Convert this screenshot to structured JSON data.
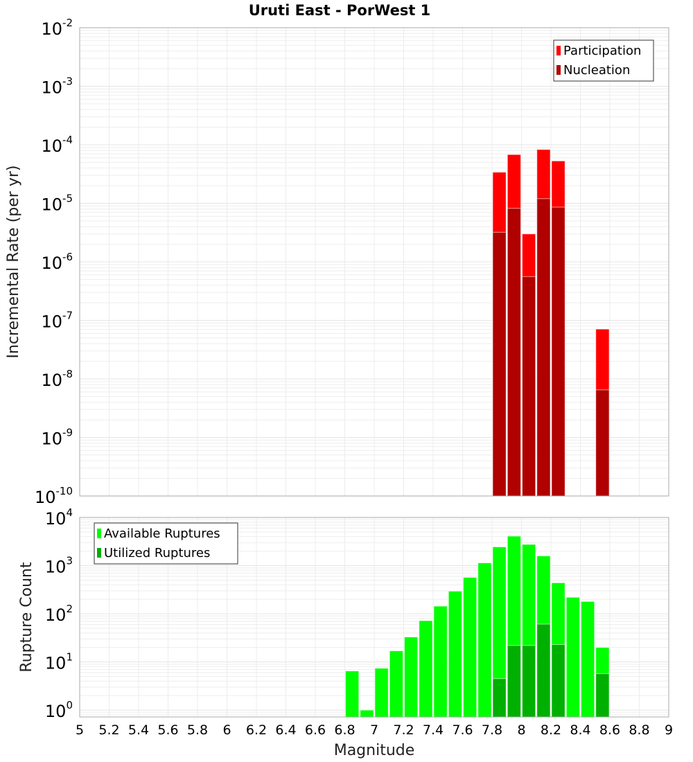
{
  "chart_data": [
    {
      "type": "bar",
      "title": "Uruti East - PorWest 1",
      "xlabel": "Magnitude",
      "ylabel": "Incremental Rate (per yr)",
      "yscale": "log",
      "xlim": [
        5,
        9
      ],
      "ylim": [
        1e-10,
        0.01
      ],
      "ytick_exponents": [
        -10,
        -9,
        -8,
        -7,
        -6,
        -5,
        -4,
        -3,
        -2
      ],
      "bin_width": 0.1,
      "legend_position": "top-right",
      "grid": true,
      "series": [
        {
          "name": "Participation",
          "color": "#ff0000",
          "x": [
            7.85,
            7.95,
            8.05,
            8.15,
            8.25,
            8.55
          ],
          "values": [
            3.4e-05,
            6.8e-05,
            3e-06,
            8.3e-05,
            5.3e-05,
            7.1e-08
          ]
        },
        {
          "name": "Nucleation",
          "color": "#b00000",
          "x": [
            7.85,
            7.95,
            8.05,
            8.15,
            8.25,
            8.55
          ],
          "values": [
            3.2e-06,
            8.2e-06,
            5.6e-07,
            1.2e-05,
            8.6e-06,
            6.5e-09
          ]
        }
      ]
    },
    {
      "type": "bar",
      "xlabel": "Magnitude",
      "ylabel": "Rupture Count",
      "yscale": "log",
      "xlim": [
        5,
        9
      ],
      "ylim": [
        0.72,
        10000.0
      ],
      "ytick_exponents": [
        0,
        1,
        2,
        3,
        4
      ],
      "xticks": [
        "5",
        "5.2",
        "5.4",
        "5.6",
        "5.8",
        "6",
        "6.2",
        "6.4",
        "6.6",
        "6.8",
        "7",
        "7.2",
        "7.4",
        "7.6",
        "7.8",
        "8",
        "8.2",
        "8.4",
        "8.6",
        "8.8",
        "9"
      ],
      "bin_width": 0.1,
      "legend_position": "top-left",
      "grid": true,
      "series": [
        {
          "name": "Available Ruptures",
          "color": "#00ff00",
          "x": [
            6.85,
            6.95,
            7.05,
            7.15,
            7.25,
            7.35,
            7.45,
            7.55,
            7.65,
            7.75,
            7.85,
            7.95,
            8.05,
            8.15,
            8.25,
            8.35,
            8.45,
            8.55
          ],
          "values": [
            6.5,
            1,
            7.4,
            17,
            33,
            72,
            144,
            295,
            570,
            1140,
            2450,
            4100,
            2760,
            1590,
            440,
            220,
            180,
            20
          ]
        },
        {
          "name": "Utilized Ruptures",
          "color": "#00b000",
          "x": [
            7.85,
            7.95,
            8.05,
            8.15,
            8.25,
            8.55
          ],
          "values": [
            4.5,
            22,
            22,
            61,
            23,
            5.7
          ]
        }
      ]
    }
  ]
}
